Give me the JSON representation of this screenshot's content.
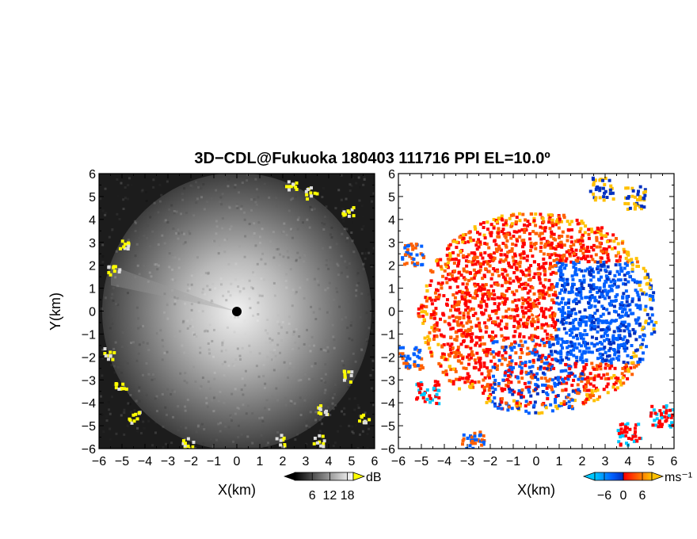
{
  "title": "3D−CDL@Fukuoka 180403 111716 PPI EL=10.0º",
  "chart_data": [
    {
      "type": "heatmap",
      "panel": "left",
      "xlabel": "X(km)",
      "ylabel": "Y(km)",
      "xlim": [
        -6,
        6
      ],
      "ylim": [
        -6,
        6
      ],
      "x_ticks": [
        "−6",
        "−5",
        "−4",
        "−3",
        "−2",
        "−1",
        "0",
        "1",
        "2",
        "3",
        "4",
        "5",
        "6"
      ],
      "y_ticks": [
        "6",
        "5",
        "4",
        "3",
        "2",
        "1",
        "0",
        "−1",
        "−2",
        "−3",
        "−4",
        "−5",
        "−6"
      ],
      "radar_center": [
        0,
        0
      ],
      "colorbar": {
        "unit": "dB",
        "tick_labels": [
          "6",
          "12",
          "18"
        ],
        "tick_values": [
          6,
          12,
          18
        ],
        "range": [
          0,
          20
        ],
        "colors": [
          "#000000",
          "#ffffff"
        ],
        "over_color": "#ffff00"
      }
    },
    {
      "type": "heatmap",
      "panel": "right",
      "xlabel": "X(km)",
      "xlim": [
        -6,
        6
      ],
      "ylim": [
        -6,
        6
      ],
      "x_ticks": [
        "−6",
        "−5",
        "−4",
        "−3",
        "−2",
        "−1",
        "0",
        "1",
        "2",
        "3",
        "4",
        "5",
        "6"
      ],
      "y_ticks": [
        "6",
        "5",
        "4",
        "3",
        "2",
        "1",
        "0",
        "−1",
        "−2",
        "−3",
        "−4",
        "−5",
        "−6"
      ],
      "colorbar": {
        "unit": "ms⁻¹",
        "tick_labels": [
          "−6",
          "0",
          "6"
        ],
        "tick_values": [
          -6,
          0,
          6
        ],
        "range": [
          -9,
          9
        ],
        "colors": [
          "#00c8ff",
          "#0060ff",
          "#0030c0",
          "#ff0000",
          "#ff6000",
          "#ffc000"
        ]
      }
    }
  ]
}
